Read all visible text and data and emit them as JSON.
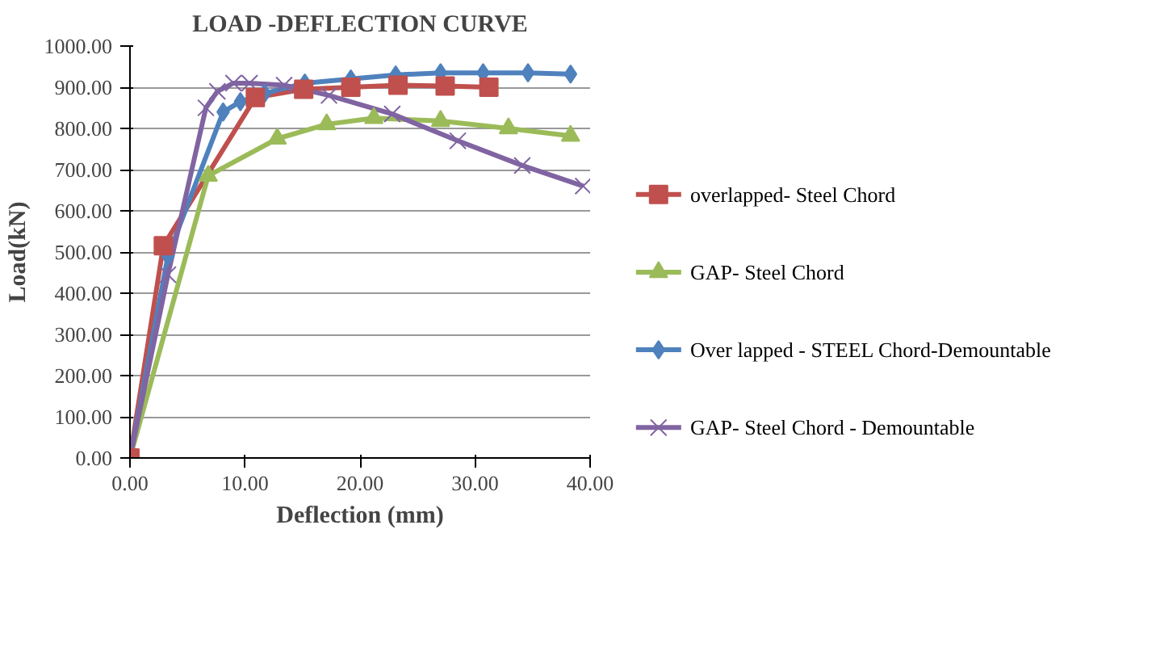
{
  "chart_data": {
    "type": "line",
    "title": "LOAD -DEFLECTION CURVE",
    "xlabel": "Deflection (mm)",
    "ylabel": "Load(kN)",
    "xlim": [
      0,
      40
    ],
    "ylim": [
      0,
      1000
    ],
    "xticks": [
      {
        "value": 0,
        "label": "0.00"
      },
      {
        "value": 10,
        "label": "10.00"
      },
      {
        "value": 20,
        "label": "20.00"
      },
      {
        "value": 30,
        "label": "30.00"
      },
      {
        "value": 40,
        "label": "40.00"
      }
    ],
    "yticks": [
      {
        "value": 0,
        "label": "0.00"
      },
      {
        "value": 100,
        "label": "100.00"
      },
      {
        "value": 200,
        "label": "200.00"
      },
      {
        "value": 300,
        "label": "300.00"
      },
      {
        "value": 400,
        "label": "400.00"
      },
      {
        "value": 500,
        "label": "500.00"
      },
      {
        "value": 600,
        "label": "600.00"
      },
      {
        "value": 700,
        "label": "700.00"
      },
      {
        "value": 800,
        "label": "800.00"
      },
      {
        "value": 900,
        "label": "900.00"
      },
      {
        "value": 1000,
        "label": "1000.00"
      }
    ],
    "grid": "y",
    "legend": "right",
    "series": [
      {
        "name": "overlapped- Steel Chord",
        "color": "#c0504d",
        "marker": "square",
        "x": [
          0,
          2.9,
          10.9,
          15.1,
          19.2,
          23.3,
          27.4,
          31.2
        ],
        "values": [
          0,
          515,
          875,
          895,
          900,
          905,
          903,
          900
        ]
      },
      {
        "name": "GAP- Steel Chord",
        "color": "#9bbb59",
        "marker": "triangle",
        "x": [
          0,
          6.8,
          12.8,
          17.1,
          21.2,
          27.0,
          32.9,
          38.3
        ],
        "values": [
          0,
          685,
          775,
          810,
          825,
          818,
          800,
          782
        ]
      },
      {
        "name": "Over lapped - STEEL Chord-Demountable",
        "color": "#4f81bd",
        "marker": "diamond",
        "x": [
          0,
          3.3,
          8.1,
          9.6,
          11.7,
          15.2,
          19.2,
          23.1,
          27.0,
          30.7,
          34.6,
          38.3
        ],
        "values": [
          0,
          490,
          840,
          865,
          885,
          910,
          920,
          930,
          935,
          935,
          935,
          932
        ]
      },
      {
        "name": "GAP- Steel Chord - Demountable",
        "color": "#8064a2",
        "marker": "cross",
        "x": [
          0,
          3.3,
          6.6,
          7.6,
          9.0,
          10.4,
          13.4,
          17.3,
          22.8,
          28.5,
          34.1,
          39.4
        ],
        "values": [
          0,
          445,
          850,
          890,
          910,
          910,
          905,
          880,
          835,
          770,
          710,
          660
        ]
      }
    ]
  }
}
